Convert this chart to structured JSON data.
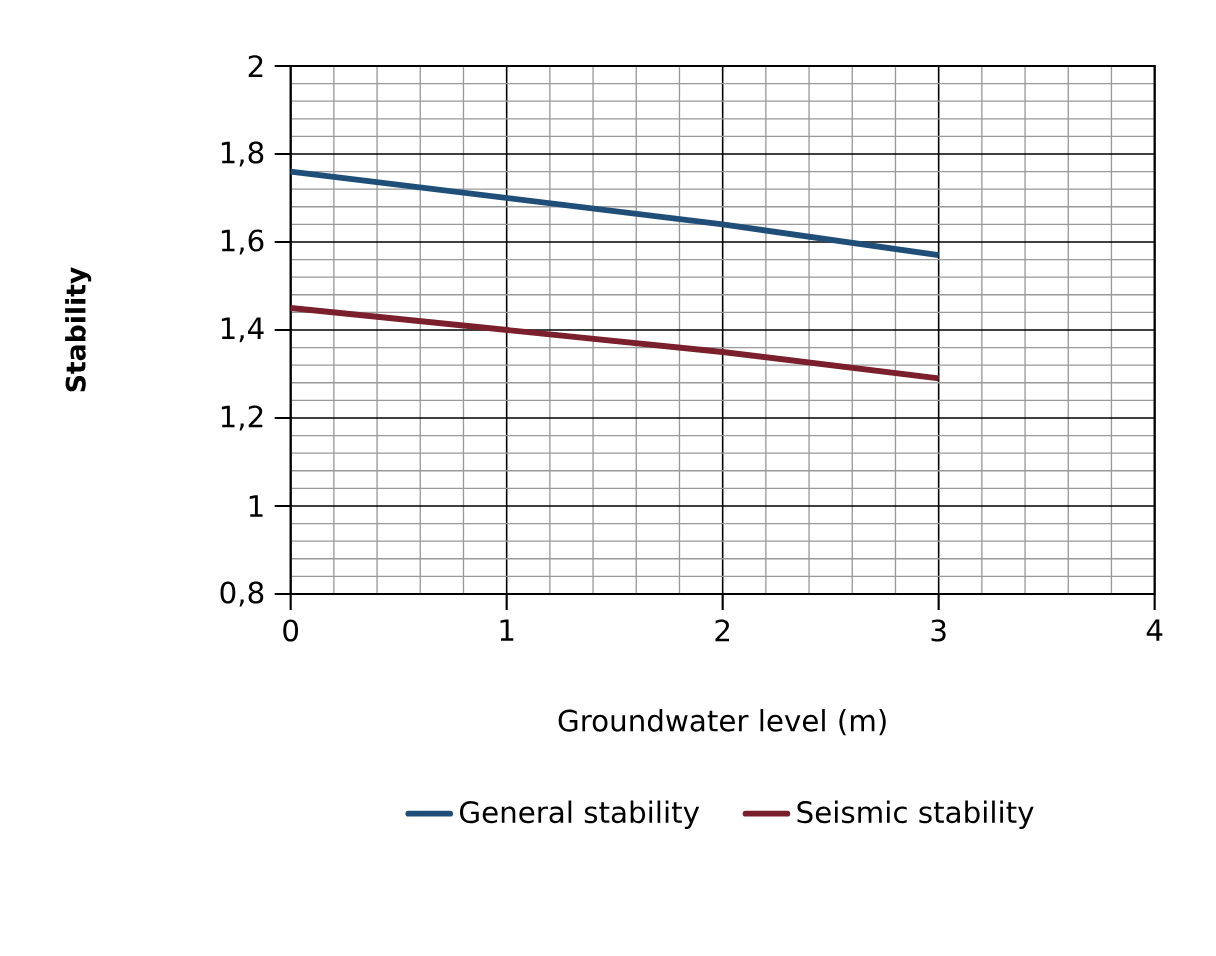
{
  "chart_data": {
    "type": "line",
    "xlabel": "Groundwater level (m)",
    "ylabel": "Stability",
    "x": [
      0,
      1,
      2,
      3
    ],
    "series": [
      {
        "name": "General stability",
        "color": "#1f4e79",
        "values": [
          1.76,
          1.7,
          1.64,
          1.57
        ]
      },
      {
        "name": "Seismic stability",
        "color": "#7a1f2b",
        "values": [
          1.45,
          1.4,
          1.35,
          1.29
        ]
      }
    ],
    "xlim": [
      0,
      4
    ],
    "xticks": [
      0,
      1,
      2,
      3,
      4
    ],
    "ylim": [
      0.8,
      2
    ],
    "yticks": [
      {
        "value": 0.8,
        "label": "0,8"
      },
      1,
      {
        "value": 1.2,
        "label": "1,2"
      },
      {
        "value": 1.4,
        "label": "1,4"
      },
      {
        "value": 1.6,
        "label": "1,6"
      },
      {
        "value": 1.8,
        "label": "1,8"
      },
      2
    ],
    "grid": true,
    "legend": "bottom",
    "marker": "none",
    "line_style": "solid"
  }
}
